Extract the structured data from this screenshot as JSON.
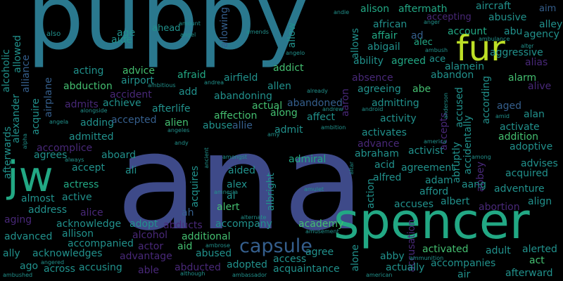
{
  "palette": {
    "background": "#000000",
    "violet_dark": "#44106b",
    "violet": "#482878",
    "indigo": "#3e4a89",
    "slate_blue": "#355f8d",
    "blue": "#2a788e",
    "teal": "#21918c",
    "sea_green": "#22a884",
    "green": "#44bf70",
    "lime": "#7ad151",
    "yellow_green": "#bddf26"
  },
  "words": [
    {
      "id": "w1",
      "text": "ana"
    },
    {
      "id": "w2",
      "text": "puppy"
    },
    {
      "id": "w3",
      "text": "spencer"
    },
    {
      "id": "w4",
      "text": "jw"
    },
    {
      "id": "w5",
      "text": "fur"
    },
    {
      "id": "w6",
      "text": "capsule"
    },
    {
      "id": "w7",
      "text": "alison"
    },
    {
      "id": "w8",
      "text": "aftermath"
    },
    {
      "id": "w9",
      "text": "aircraft"
    },
    {
      "id": "w10",
      "text": "aim"
    },
    {
      "id": "w11",
      "text": "alley"
    },
    {
      "id": "w12",
      "text": "agency"
    },
    {
      "id": "w13",
      "text": "accepting"
    },
    {
      "id": "w14",
      "text": "abusive"
    },
    {
      "id": "w15",
      "text": "african"
    },
    {
      "id": "w16",
      "text": "affair"
    },
    {
      "id": "w17",
      "text": "ad"
    },
    {
      "id": "w18",
      "text": "account"
    },
    {
      "id": "w19",
      "text": "abu"
    },
    {
      "id": "w20",
      "text": "abigail"
    },
    {
      "id": "w21",
      "text": "alec"
    },
    {
      "id": "w22",
      "text": "ace"
    },
    {
      "id": "w23",
      "text": "aggressive"
    },
    {
      "id": "w24",
      "text": "alias"
    },
    {
      "id": "w25",
      "text": "ability"
    },
    {
      "id": "w26",
      "text": "agreed"
    },
    {
      "id": "w27",
      "text": "alamein"
    },
    {
      "id": "w28",
      "text": "abandon"
    },
    {
      "id": "w29",
      "text": "alarm"
    },
    {
      "id": "w30",
      "text": "alive"
    },
    {
      "id": "w31",
      "text": "age"
    },
    {
      "id": "w32",
      "text": "ahead"
    },
    {
      "id": "w33",
      "text": "also"
    },
    {
      "id": "w34",
      "text": "aide"
    },
    {
      "id": "w35",
      "text": "alcoholic"
    },
    {
      "id": "w36",
      "text": "allowed"
    },
    {
      "id": "w37",
      "text": "alliance"
    },
    {
      "id": "w38",
      "text": "acting"
    },
    {
      "id": "w39",
      "text": "advice"
    },
    {
      "id": "w40",
      "text": "airport"
    },
    {
      "id": "w41",
      "text": "afraid"
    },
    {
      "id": "w42",
      "text": "airfield"
    },
    {
      "id": "w43",
      "text": "addict"
    },
    {
      "id": "w44",
      "text": "allen"
    },
    {
      "id": "w45",
      "text": "allowing"
    },
    {
      "id": "w46",
      "text": "allow"
    },
    {
      "id": "w47",
      "text": "allows"
    },
    {
      "id": "w48",
      "text": "absence"
    },
    {
      "id": "w49",
      "text": "agreeing"
    },
    {
      "id": "w50",
      "text": "abe"
    },
    {
      "id": "w51",
      "text": "abduction"
    },
    {
      "id": "w52",
      "text": "accident"
    },
    {
      "id": "w53",
      "text": "add"
    },
    {
      "id": "w54",
      "text": "abandoning"
    },
    {
      "id": "w55",
      "text": "admits"
    },
    {
      "id": "w56",
      "text": "achieve"
    },
    {
      "id": "w57",
      "text": "afterlife"
    },
    {
      "id": "w58",
      "text": "actual"
    },
    {
      "id": "w59",
      "text": "abandoned"
    },
    {
      "id": "w60",
      "text": "admitting"
    },
    {
      "id": "w61",
      "text": "affection"
    },
    {
      "id": "w62",
      "text": "along"
    },
    {
      "id": "w63",
      "text": "aaron"
    },
    {
      "id": "w64",
      "text": "accused"
    },
    {
      "id": "w65",
      "text": "accidentally"
    },
    {
      "id": "w66",
      "text": "according"
    },
    {
      "id": "w67",
      "text": "aged"
    },
    {
      "id": "w68",
      "text": "alan"
    },
    {
      "id": "w69",
      "text": "activate"
    },
    {
      "id": "w70",
      "text": "addition"
    },
    {
      "id": "w71",
      "text": "adoptive"
    },
    {
      "id": "w72",
      "text": "afterwards"
    },
    {
      "id": "w73",
      "text": "alexander"
    },
    {
      "id": "w74",
      "text": "acquire"
    },
    {
      "id": "w75",
      "text": "airplane"
    },
    {
      "id": "w76",
      "text": "adding"
    },
    {
      "id": "w77",
      "text": "accepted"
    },
    {
      "id": "w78",
      "text": "alien"
    },
    {
      "id": "w79",
      "text": "abuse"
    },
    {
      "id": "w80",
      "text": "allie"
    },
    {
      "id": "w81",
      "text": "affect"
    },
    {
      "id": "w82",
      "text": "activity"
    },
    {
      "id": "w83",
      "text": "accomplice"
    },
    {
      "id": "w84",
      "text": "admitted"
    },
    {
      "id": "w85",
      "text": "admit"
    },
    {
      "id": "w86",
      "text": "activates"
    },
    {
      "id": "w87",
      "text": "advance"
    },
    {
      "id": "w88",
      "text": "abraham"
    },
    {
      "id": "w89",
      "text": "activist"
    },
    {
      "id": "w90",
      "text": "accepts"
    },
    {
      "id": "w91",
      "text": "abruptly"
    },
    {
      "id": "w92",
      "text": "abbey"
    },
    {
      "id": "w93",
      "text": "advises"
    },
    {
      "id": "w94",
      "text": "acquired"
    },
    {
      "id": "w95",
      "text": "agrees"
    },
    {
      "id": "w96",
      "text": "aboard"
    },
    {
      "id": "w97",
      "text": "accept"
    },
    {
      "id": "w98",
      "text": "admiral"
    },
    {
      "id": "w99",
      "text": "acid"
    },
    {
      "id": "w100",
      "text": "agreement"
    },
    {
      "id": "w101",
      "text": "aided"
    },
    {
      "id": "w102",
      "text": "alfred"
    },
    {
      "id": "w103",
      "text": "adam"
    },
    {
      "id": "w104",
      "text": "albright"
    },
    {
      "id": "w105",
      "text": "action"
    },
    {
      "id": "w106",
      "text": "ali"
    },
    {
      "id": "w107",
      "text": "acquires"
    },
    {
      "id": "w108",
      "text": "alex"
    },
    {
      "id": "w109",
      "text": "al"
    },
    {
      "id": "w110",
      "text": "afford"
    },
    {
      "id": "w111",
      "text": "aang"
    },
    {
      "id": "w112",
      "text": "adventure"
    },
    {
      "id": "w113",
      "text": "actress"
    },
    {
      "id": "w114",
      "text": "almost"
    },
    {
      "id": "w115",
      "text": "active"
    },
    {
      "id": "w116",
      "text": "address"
    },
    {
      "id": "w117",
      "text": "alert"
    },
    {
      "id": "w118",
      "text": "accuses"
    },
    {
      "id": "w119",
      "text": "albert"
    },
    {
      "id": "w120",
      "text": "abortion"
    },
    {
      "id": "w121",
      "text": "align"
    },
    {
      "id": "w122",
      "text": "aging"
    },
    {
      "id": "w123",
      "text": "alice"
    },
    {
      "id": "w124",
      "text": "ah"
    },
    {
      "id": "w125",
      "text": "allison"
    },
    {
      "id": "w126",
      "text": "acknowledge"
    },
    {
      "id": "w127",
      "text": "adopt"
    },
    {
      "id": "w128",
      "text": "abducts"
    },
    {
      "id": "w129",
      "text": "accompany"
    },
    {
      "id": "w130",
      "text": "academy"
    },
    {
      "id": "w131",
      "text": "advanced"
    },
    {
      "id": "w132",
      "text": "accompanied"
    },
    {
      "id": "w133",
      "text": "alcohol"
    },
    {
      "id": "w134",
      "text": "additional"
    },
    {
      "id": "w135",
      "text": "accusation"
    },
    {
      "id": "w136",
      "text": "ally"
    },
    {
      "id": "w137",
      "text": "acknowledges"
    },
    {
      "id": "w138",
      "text": "actor"
    },
    {
      "id": "w139",
      "text": "aid"
    },
    {
      "id": "w140",
      "text": "abused"
    },
    {
      "id": "w141",
      "text": "agree"
    },
    {
      "id": "w142",
      "text": "alone"
    },
    {
      "id": "w143",
      "text": "abby"
    },
    {
      "id": "w144",
      "text": "activated"
    },
    {
      "id": "w145",
      "text": "adult"
    },
    {
      "id": "w146",
      "text": "alerted"
    },
    {
      "id": "w147",
      "text": "advantage"
    },
    {
      "id": "w148",
      "text": "access"
    },
    {
      "id": "w149",
      "text": "ago"
    },
    {
      "id": "w150",
      "text": "across"
    },
    {
      "id": "w151",
      "text": "accusing"
    },
    {
      "id": "w152",
      "text": "able"
    },
    {
      "id": "w153",
      "text": "abducted"
    },
    {
      "id": "w154",
      "text": "adopted"
    },
    {
      "id": "w155",
      "text": "acquaintance"
    },
    {
      "id": "w156",
      "text": "actually"
    },
    {
      "id": "w157",
      "text": "accompanies"
    },
    {
      "id": "w158",
      "text": "act"
    },
    {
      "id": "w159",
      "text": "air"
    },
    {
      "id": "w160",
      "text": "afterward"
    },
    {
      "id": "w161",
      "text": "amount"
    },
    {
      "id": "w162",
      "text": "angel"
    },
    {
      "id": "w163",
      "text": "amends"
    },
    {
      "id": "w164",
      "text": "andie"
    },
    {
      "id": "w165",
      "text": "anger"
    },
    {
      "id": "w166",
      "text": "ambush"
    },
    {
      "id": "w167",
      "text": "ambulance"
    },
    {
      "id": "w168",
      "text": "alter"
    },
    {
      "id": "w169",
      "text": "angelo"
    },
    {
      "id": "w170",
      "text": "ambitious"
    },
    {
      "id": "w171",
      "text": "andrea"
    },
    {
      "id": "w172",
      "text": "already"
    },
    {
      "id": "w173",
      "text": "alongside"
    },
    {
      "id": "w174",
      "text": "andrew"
    },
    {
      "id": "w175",
      "text": "android"
    },
    {
      "id": "w176",
      "text": "anderson"
    },
    {
      "id": "w177",
      "text": "amid"
    },
    {
      "id": "w178",
      "text": "angela"
    },
    {
      "id": "w179",
      "text": "angeles"
    },
    {
      "id": "w180",
      "text": "ambition"
    },
    {
      "id": "w181",
      "text": "alpha"
    },
    {
      "id": "w182",
      "text": "andy"
    },
    {
      "id": "w183",
      "text": "amy"
    },
    {
      "id": "w184",
      "text": "america"
    },
    {
      "id": "w185",
      "text": "always"
    },
    {
      "id": "w186",
      "text": "amongst"
    },
    {
      "id": "w187",
      "text": "ancient"
    },
    {
      "id": "w188",
      "text": "among"
    },
    {
      "id": "w189",
      "text": "altar"
    },
    {
      "id": "w190",
      "text": "amnesia"
    },
    {
      "id": "w191",
      "text": "amulet"
    },
    {
      "id": "w192",
      "text": "alternate"
    },
    {
      "id": "w193",
      "text": "ambrose"
    },
    {
      "id": "w194",
      "text": "amusement"
    },
    {
      "id": "w195",
      "text": "ammunition"
    },
    {
      "id": "w196",
      "text": "angered"
    },
    {
      "id": "w197",
      "text": "ambushed"
    },
    {
      "id": "w198",
      "text": "although"
    },
    {
      "id": "w199",
      "text": "ambassador"
    },
    {
      "id": "w200",
      "text": "american"
    }
  ]
}
